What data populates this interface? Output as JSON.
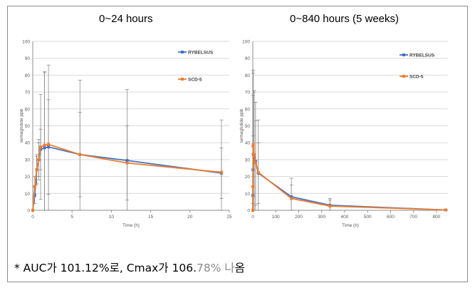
{
  "colors": {
    "rybelsus": "#4472C4",
    "scd5": "#ED7D31",
    "grid": "#d9d9d9",
    "axis": "#8c8c8c",
    "errorbar": "#7f7f7f"
  },
  "caption": {
    "prefix": "* AUC가 101.12%로, Cmax가 106.",
    "faded": "78% 나",
    "suffix": "옴"
  },
  "chart_data": [
    {
      "type": "line",
      "title": "0~24 hours",
      "xlabel": "Time (h)",
      "ylabel": "semaglutide ppb",
      "xlim": [
        0,
        25
      ],
      "ylim": [
        0,
        100
      ],
      "xticks": [
        0,
        5,
        10,
        15,
        20,
        25
      ],
      "yticks": [
        0,
        10,
        20,
        30,
        40,
        50,
        60,
        70,
        80,
        90,
        100
      ],
      "grid": "horizontal",
      "legend": "right",
      "series": [
        {
          "name": "RYBELSUS",
          "x": [
            0,
            0.25,
            0.5,
            0.75,
            1,
            1.5,
            2,
            6,
            12,
            24
          ],
          "values": [
            0,
            9,
            24,
            30,
            36,
            37,
            37.5,
            33,
            29.5,
            22
          ],
          "err": [
            0,
            5,
            8,
            10,
            12,
            45,
            28,
            44,
            42,
            15
          ]
        },
        {
          "name": "SCD-5",
          "x": [
            0,
            0.25,
            0.5,
            0.75,
            1,
            1.5,
            2,
            6,
            12,
            24
          ],
          "values": [
            0,
            14,
            24,
            30,
            37.5,
            38.5,
            39,
            33,
            28,
            22.5
          ],
          "err": [
            0,
            6,
            9,
            12,
            31,
            43,
            47,
            25,
            22,
            31
          ]
        }
      ]
    },
    {
      "type": "line",
      "title": "0~840 hours (5 weeks)",
      "xlabel": "Time (h)",
      "ylabel": "semaglutide ppb",
      "xlim": [
        0,
        850
      ],
      "ylim": [
        0,
        100
      ],
      "xticks": [
        0,
        100,
        200,
        300,
        400,
        500,
        600,
        700,
        800
      ],
      "yticks": [
        0,
        10,
        20,
        30,
        40,
        50,
        60,
        70,
        80,
        90,
        100
      ],
      "grid": "horizontal",
      "legend": "right",
      "series": [
        {
          "name": "RYBELSUS",
          "x": [
            0,
            0.5,
            1,
            2,
            6,
            12,
            24,
            168,
            336,
            840
          ],
          "values": [
            0,
            9,
            24,
            33,
            31,
            29,
            22,
            8,
            3,
            0.2
          ],
          "err": [
            0,
            5,
            20,
            48,
            40,
            35,
            18,
            11,
            4,
            0.5
          ]
        },
        {
          "name": "SCD-5",
          "x": [
            0,
            0.5,
            1,
            2,
            6,
            12,
            24,
            168,
            336,
            840
          ],
          "values": [
            0,
            14,
            38,
            39,
            33,
            28,
            22.5,
            7,
            2.5,
            0.2
          ],
          "err": [
            0,
            6,
            30,
            44,
            37,
            25,
            31,
            8,
            3.5,
            0.5
          ]
        }
      ]
    }
  ]
}
